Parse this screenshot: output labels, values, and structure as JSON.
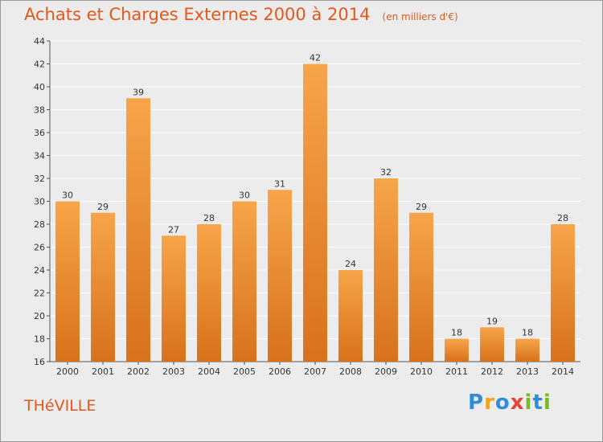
{
  "header": {
    "title": "Achats et Charges Externes 2000 à 2014",
    "subtitle": "(en milliers d'€)"
  },
  "footer": {
    "city": "THéVILLE",
    "logo_letters": [
      "P",
      "r",
      "o",
      "x",
      "i",
      "t",
      "i"
    ],
    "logo_colors": [
      "#2e8fd8",
      "#f2a417",
      "#2e8fd8",
      "#e8433a",
      "#7bb928",
      "#2e8fd8",
      "#7bb928"
    ]
  },
  "colors": {
    "bar_top": "#f7a54a",
    "bar_bottom": "#d8711c",
    "accent": "#e4581b"
  },
  "chart_data": {
    "type": "bar",
    "title": "Achats et Charges Externes 2000 à 2014",
    "subtitle": "(en milliers d'€)",
    "categories": [
      "2000",
      "2001",
      "2002",
      "2003",
      "2004",
      "2005",
      "2006",
      "2007",
      "2008",
      "2009",
      "2010",
      "2011",
      "2012",
      "2013",
      "2014"
    ],
    "values": [
      30,
      29,
      39,
      27,
      28,
      30,
      31,
      42,
      24,
      32,
      29,
      18,
      19,
      18,
      28
    ],
    "ylim": [
      16,
      44
    ],
    "yticks": [
      16,
      18,
      20,
      22,
      24,
      26,
      28,
      30,
      32,
      34,
      36,
      38,
      40,
      42,
      44
    ],
    "grid": true,
    "xlabel": "",
    "ylabel": ""
  }
}
